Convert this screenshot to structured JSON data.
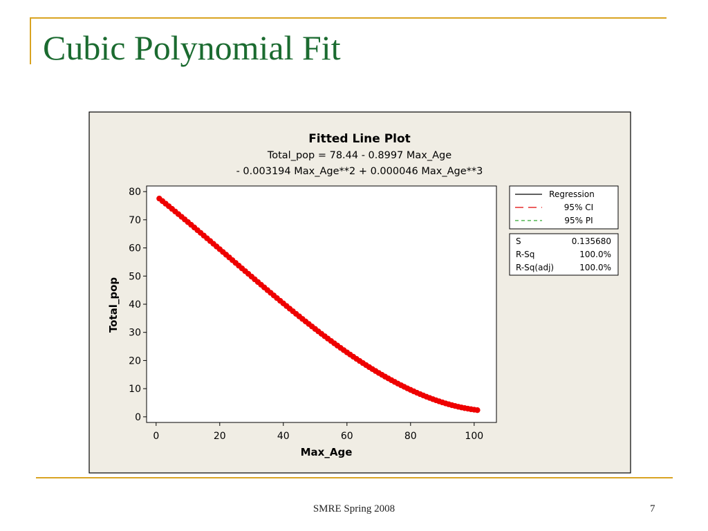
{
  "slide": {
    "title": "Cubic Polynomial Fit",
    "footer": "SMRE Spring 2008",
    "page_number": "7"
  },
  "colors": {
    "accent_gold": "#d9a321",
    "title_green": "#1b6b30",
    "chart_bg": "#f0ede4",
    "points": "#ee0000"
  },
  "chart_data": {
    "type": "scatter",
    "title": "Fitted Line Plot",
    "equation_line1": "Total_pop =  78.44 - 0.8997 Max_Age",
    "equation_line2": "- 0.003194 Max_Age**2 + 0.000046 Max_Age**3",
    "xlabel": "Max_Age",
    "ylabel": "Total_pop",
    "xlim": [
      -3,
      107
    ],
    "ylim": [
      -2,
      82
    ],
    "xticks": [
      0,
      20,
      40,
      60,
      80,
      100
    ],
    "yticks": [
      0,
      10,
      20,
      30,
      40,
      50,
      60,
      70,
      80
    ],
    "coefficients": {
      "b0": 78.44,
      "b1": -0.8997,
      "b2": -0.003194,
      "b3": 4.6e-05
    },
    "x_range": [
      1,
      101
    ],
    "legend": {
      "placement": "right",
      "entries": [
        {
          "label": "Regression",
          "style": "solid",
          "color": "#000000"
        },
        {
          "label": "95% CI",
          "style": "longdash",
          "color": "#e00000"
        },
        {
          "label": "95% PI",
          "style": "dash",
          "color": "#2fa82f"
        }
      ]
    },
    "stats": [
      {
        "label": "S",
        "value": "0.135680"
      },
      {
        "label": "R-Sq",
        "value": "100.0%"
      },
      {
        "label": "R-Sq(adj)",
        "value": "100.0%"
      }
    ]
  }
}
